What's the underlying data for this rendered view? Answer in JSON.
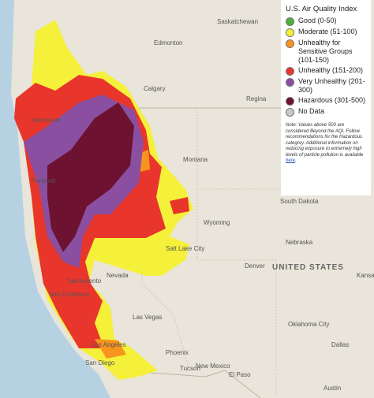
{
  "legend": {
    "title": "U.S. Air Quality Index",
    "items": [
      {
        "label": "Good (0-50)",
        "color": "#4caf3e"
      },
      {
        "label": "Moderate (51-100)",
        "color": "#f5f032"
      },
      {
        "label": "Unhealthy for Sensitive Groups (101-150)",
        "color": "#f7941d"
      },
      {
        "label": "Unhealthy (151-200)",
        "color": "#e8362c"
      },
      {
        "label": "Very Unhealthy (201-300)",
        "color": "#8a4fa0"
      },
      {
        "label": "Hazardous (301-500)",
        "color": "#6e1231"
      },
      {
        "label": "No Data",
        "color": "#c8c8c8"
      }
    ],
    "note": {
      "text": "Note: Values above 500 are considered Beyond the AQI. Follow recommendations for the Hazardous category. Additional information on reducing exposure to extremely high levels of particle pollution is available",
      "link": "here",
      "end": "."
    }
  },
  "places": [
    {
      "label": "Edmonton"
    },
    {
      "label": "Saskatchewan"
    },
    {
      "label": "Calgary"
    },
    {
      "label": "Regina"
    },
    {
      "label": "Vancouver"
    },
    {
      "label": "Portland"
    },
    {
      "label": "Montana"
    },
    {
      "label": "South Dakota"
    },
    {
      "label": "Wyoming"
    },
    {
      "label": "Nebraska"
    },
    {
      "label": "Salt Lake City"
    },
    {
      "label": "Nevada"
    },
    {
      "label": "Denver"
    },
    {
      "label": "UNITED STATES"
    },
    {
      "label": "Kansas"
    },
    {
      "label": "Sacramento"
    },
    {
      "label": "San Francisco"
    },
    {
      "label": "Las Vegas"
    },
    {
      "label": "Oklahoma City"
    },
    {
      "label": "Los Angeles"
    },
    {
      "label": "New Mexico"
    },
    {
      "label": "Phoenix"
    },
    {
      "label": "San Diego"
    },
    {
      "label": "Tucson"
    },
    {
      "label": "El Paso"
    },
    {
      "label": "Dallas"
    },
    {
      "label": "Austin"
    }
  ]
}
